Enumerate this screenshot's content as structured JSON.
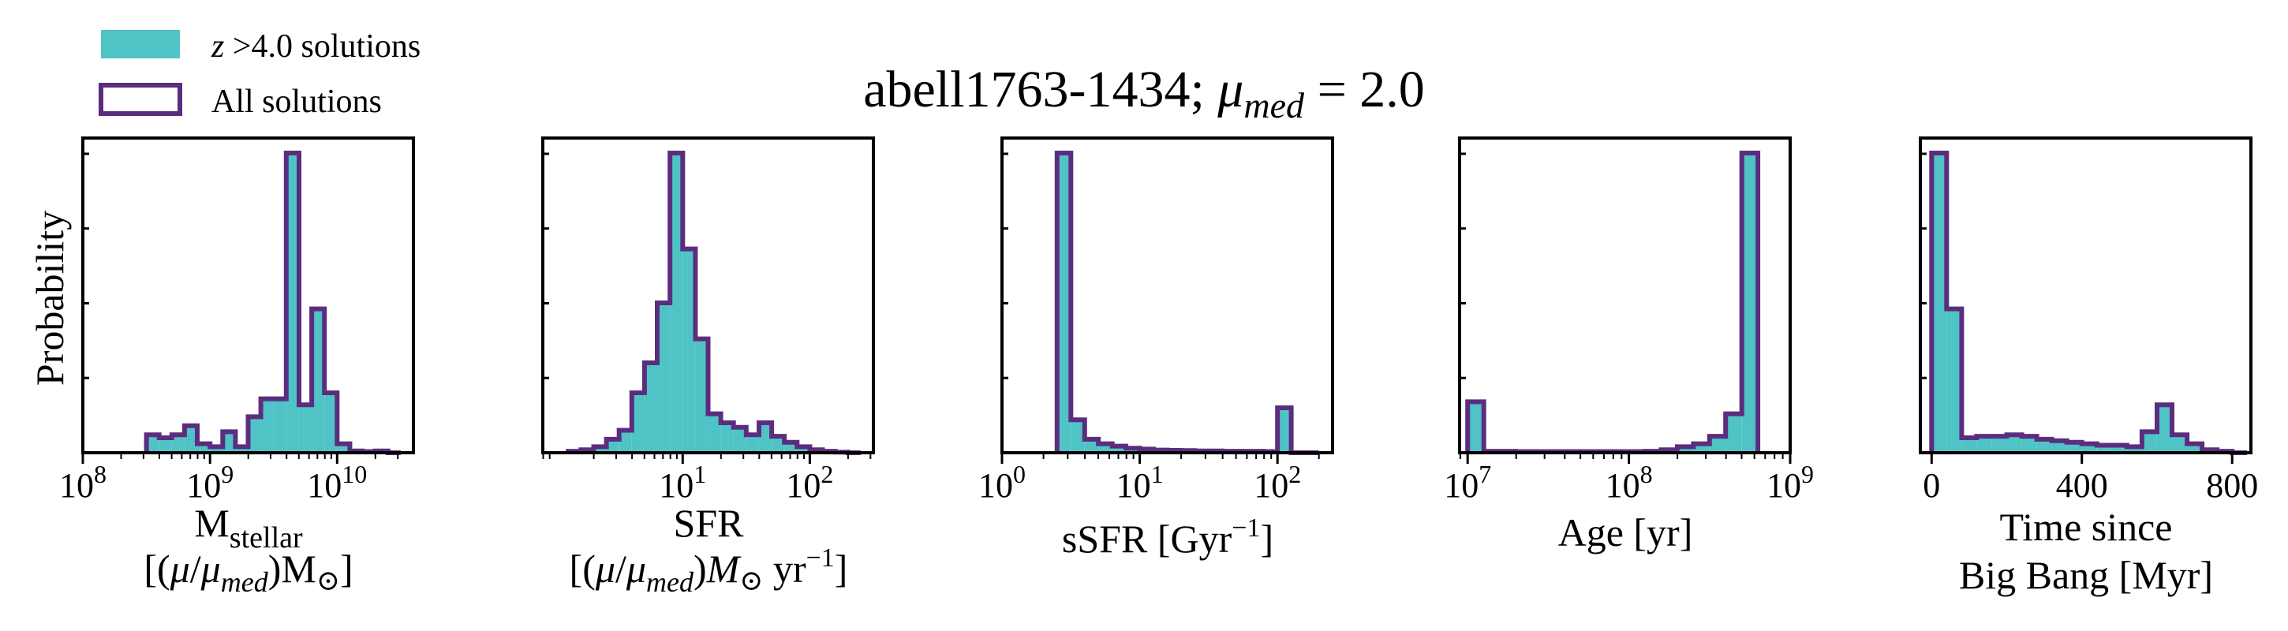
{
  "colors": {
    "fill": "#4fc3c6",
    "outline": "#5c2d7e",
    "frame": "#000000"
  },
  "figure": {
    "title": {
      "name": "abell1763-1434; ",
      "mu": "μ",
      "sub": "med",
      "rest": " = 2.0"
    },
    "ylabel": "Probability",
    "legend": [
      {
        "label_italic": "z",
        "label_rest": " >4.0 solutions",
        "style": "filled"
      },
      {
        "label": "All solutions",
        "style": "outline"
      }
    ]
  },
  "chart_data": [
    {
      "type": "bar",
      "xscale": "log",
      "xlim_exp": [
        8,
        10.6
      ],
      "ylim": [
        0,
        1.05
      ],
      "grid": false,
      "xticks": [
        {
          "base": "10",
          "exp": "8",
          "value": 8
        },
        {
          "base": "10",
          "exp": "9",
          "value": 9
        },
        {
          "base": "10",
          "exp": "10",
          "value": 10
        }
      ],
      "xlabel": {
        "line1_main": "M",
        "line1_sub": "stellar",
        "line2_pre": "[(",
        "mu": "μ",
        "slash": "/",
        "mu2": "μ",
        "sub": "med",
        "post": ")M",
        "sun": "⊙",
        "end": "]"
      },
      "edges": [
        8.5,
        8.6,
        8.7,
        8.8,
        8.9,
        9.0,
        9.1,
        9.2,
        9.3,
        9.4,
        9.5,
        9.6,
        9.7,
        9.8,
        9.9,
        10.0,
        10.1,
        10.2,
        10.3,
        10.4,
        10.5
      ],
      "values": [
        0.06,
        0.05,
        0.06,
        0.09,
        0.03,
        0.02,
        0.07,
        0.02,
        0.12,
        0.18,
        0.18,
        1.0,
        0.16,
        0.48,
        0.2,
        0.03,
        0.006,
        0.004,
        0.006,
        0.0
      ]
    },
    {
      "type": "bar",
      "xscale": "log",
      "xlim_exp": [
        -0.1,
        2.5
      ],
      "ylim": [
        0,
        1.05
      ],
      "grid": false,
      "xticks": [
        {
          "base": "10",
          "exp": "1",
          "value": 1
        },
        {
          "base": "10",
          "exp": "2",
          "value": 2
        }
      ],
      "xlabel": {
        "line1": "SFR",
        "line2_pre": "[(",
        "mu": "μ",
        "slash": "/",
        "mu2": "μ",
        "sub": "med",
        "post": ")",
        "m": "M",
        "sun": "⊙",
        "yr": " yr",
        "exp": "−1",
        "end": "]"
      },
      "edges": [
        0.1,
        0.2,
        0.3,
        0.4,
        0.5,
        0.6,
        0.7,
        0.8,
        0.9,
        1.0,
        1.1,
        1.2,
        1.3,
        1.4,
        1.5,
        1.6,
        1.7,
        1.8,
        1.9,
        2.0,
        2.1,
        2.2,
        2.3,
        2.4
      ],
      "values": [
        0.005,
        0.01,
        0.02,
        0.045,
        0.075,
        0.2,
        0.3,
        0.5,
        1.0,
        0.68,
        0.38,
        0.13,
        0.1,
        0.085,
        0.06,
        0.1,
        0.055,
        0.035,
        0.02,
        0.01,
        0.005,
        0.002,
        0.0
      ]
    },
    {
      "type": "bar",
      "xscale": "log",
      "xlim_exp": [
        0,
        2.4
      ],
      "ylim": [
        0,
        1.05
      ],
      "grid": false,
      "xticks": [
        {
          "base": "10",
          "exp": "0",
          "value": 0
        },
        {
          "base": "10",
          "exp": "1",
          "value": 1
        },
        {
          "base": "10",
          "exp": "2",
          "value": 2
        }
      ],
      "xlabel": {
        "line1_pre": "sSFR [Gyr",
        "exp": "−1",
        "end": "]"
      },
      "edges": [
        0.4,
        0.5,
        0.6,
        0.7,
        0.8,
        0.9,
        1.0,
        1.1,
        1.2,
        1.3,
        1.4,
        1.5,
        1.6,
        1.7,
        1.8,
        1.9,
        2.0,
        2.1,
        2.2,
        2.3
      ],
      "values": [
        1.0,
        0.11,
        0.045,
        0.03,
        0.022,
        0.015,
        0.012,
        0.009,
        0.008,
        0.007,
        0.006,
        0.006,
        0.005,
        0.005,
        0.005,
        0.004,
        0.15,
        0.0,
        0.0
      ]
    },
    {
      "type": "bar",
      "xscale": "log",
      "xlim_exp": [
        6.95,
        9.0
      ],
      "ylim": [
        0,
        1.05
      ],
      "grid": false,
      "xticks": [
        {
          "base": "10",
          "exp": "7",
          "value": 7
        },
        {
          "base": "10",
          "exp": "8",
          "value": 8
        },
        {
          "base": "10",
          "exp": "9",
          "value": 9
        }
      ],
      "xlabel": {
        "line1": "Age [yr]"
      },
      "edges": [
        7.0,
        7.1,
        7.2,
        7.3,
        7.4,
        7.5,
        7.6,
        7.7,
        7.8,
        7.9,
        8.0,
        8.1,
        8.2,
        8.3,
        8.4,
        8.5,
        8.6,
        8.7,
        8.8
      ],
      "values": [
        0.17,
        0.005,
        0.005,
        0.004,
        0.004,
        0.004,
        0.004,
        0.004,
        0.004,
        0.004,
        0.004,
        0.005,
        0.01,
        0.02,
        0.03,
        0.055,
        0.13,
        1.0
      ]
    },
    {
      "type": "bar",
      "xscale": "linear",
      "xlim": [
        -30,
        850
      ],
      "ylim": [
        0,
        1.05
      ],
      "grid": false,
      "xticks": [
        {
          "label": "0",
          "value": 0
        },
        {
          "label": "400",
          "value": 400
        },
        {
          "label": "800",
          "value": 800
        }
      ],
      "xlabel": {
        "line1": "Time since",
        "line2": "Big Bang [Myr]"
      },
      "edges": [
        0,
        40,
        80,
        120,
        160,
        200,
        240,
        280,
        320,
        360,
        400,
        440,
        480,
        520,
        560,
        600,
        640,
        680,
        720,
        760,
        800,
        840
      ],
      "values": [
        1.0,
        0.48,
        0.05,
        0.055,
        0.055,
        0.06,
        0.055,
        0.045,
        0.04,
        0.035,
        0.03,
        0.025,
        0.025,
        0.02,
        0.07,
        0.16,
        0.06,
        0.03,
        0.01,
        0.005,
        0.0
      ]
    }
  ]
}
